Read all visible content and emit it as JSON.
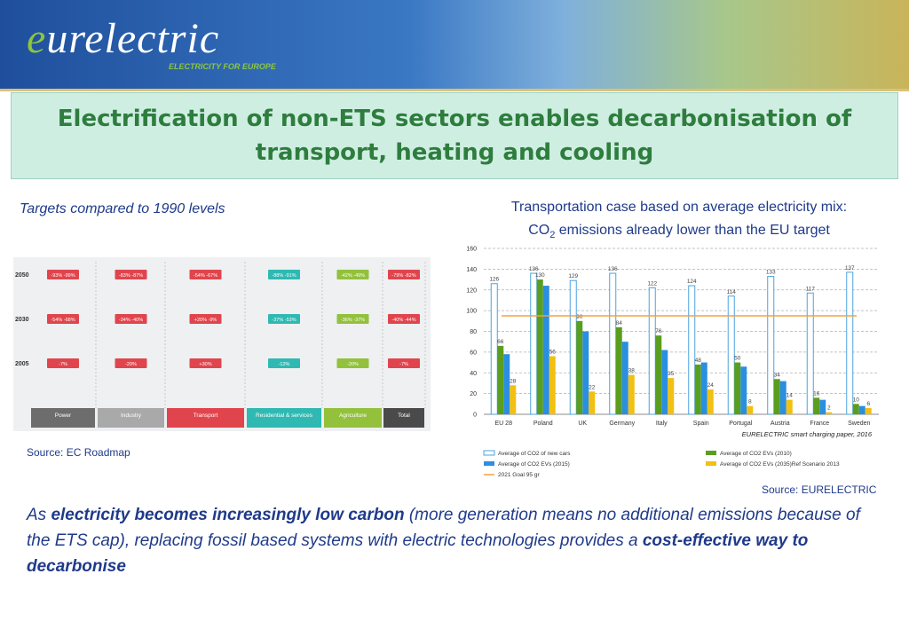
{
  "header": {
    "logo_first": "e",
    "logo_rest": "urelectric",
    "tagline": "ELECTRICITY FOR EUROPE"
  },
  "title": "Electrification of non-ETS sectors enables decarbonisation of transport, heating and cooling",
  "left_panel": {
    "caption": "Targets compared to 1990 levels",
    "years": [
      "2050",
      "2030",
      "2005"
    ],
    "sectors": [
      {
        "name": "Power",
        "cells": [
          "-93% -99%",
          "-54% -68%",
          "-7%"
        ],
        "color": "#6d6d6d"
      },
      {
        "name": "Industry",
        "cells": [
          "-83% -87%",
          "-34% -40%",
          "-20%"
        ],
        "color": "#a9a9a9"
      },
      {
        "name": "Transport",
        "cells": [
          "-54% -67%",
          "+20% -9%",
          "+30%"
        ],
        "color": "#e0454d"
      },
      {
        "name": "Residential & services",
        "cells": [
          "-88% -91%",
          "-37% -53%",
          "-12%"
        ],
        "color": "#2fb9b2"
      },
      {
        "name": "Agriculture",
        "cells": [
          "-42% -49%",
          "-36% -37%",
          "-20%"
        ],
        "color": "#93c13c"
      },
      {
        "name": "Total",
        "cells": [
          "-79% -82%",
          "-40% -44%",
          "-7%"
        ],
        "color": "#4a4a4a"
      }
    ],
    "source": "Source: EC Roadmap"
  },
  "chart_data": {
    "type": "bar",
    "title_line1": "Transportation case based on average electricity mix:",
    "title_line2": [
      "CO",
      "2",
      "emissions already lower than the EU target"
    ],
    "categories": [
      "EU 28",
      "Poland",
      "UK",
      "Germany",
      "Italy",
      "Spain",
      "Portugal",
      "Austria",
      "France",
      "Sweden"
    ],
    "series": [
      {
        "name": "Average of CO2 of new cars",
        "color": "#4aa3df",
        "outline": true,
        "labels": true,
        "values": [
          126,
          136,
          129,
          136,
          122,
          124,
          114,
          133,
          117,
          137
        ]
      },
      {
        "name": "Average of CO2 EVs (2010)",
        "color": "#5a9e1f",
        "labels": true,
        "values": [
          66,
          130,
          90,
          84,
          76,
          48,
          50,
          34,
          16,
          10
        ]
      },
      {
        "name": "Average of CO2 EVs (2015)",
        "color": "#2b8fe0",
        "values": [
          58,
          124,
          80,
          70,
          62,
          50,
          46,
          32,
          14,
          8
        ]
      },
      {
        "name": "Average of CO2 EVs (2035)Ref Scenario 2013",
        "color": "#f2c012",
        "labels": true,
        "values": [
          28,
          56,
          22,
          38,
          35,
          24,
          8,
          14,
          2,
          6
        ]
      }
    ],
    "reference_line": {
      "name": "2021 Goal 95 gr",
      "value": 95,
      "color": "#f5a040"
    },
    "ylim": [
      0,
      160
    ],
    "yticks": [
      0,
      20,
      40,
      60,
      80,
      100,
      120,
      140,
      160
    ],
    "grid": true,
    "annotation": "EURELECTRIC smart charging paper, 2016",
    "source": "Source: EURELECTRIC"
  },
  "body_text": [
    {
      "text": "As ",
      "bold": false
    },
    {
      "text": "electricity becomes increasingly low carbon",
      "bold": true
    },
    {
      "text": " (more generation means no additional emissions because of the ETS cap), replacing fossil based systems with electric technologies provides a ",
      "bold": false
    },
    {
      "text": "cost-effective way to decarbonise",
      "bold": true
    }
  ]
}
